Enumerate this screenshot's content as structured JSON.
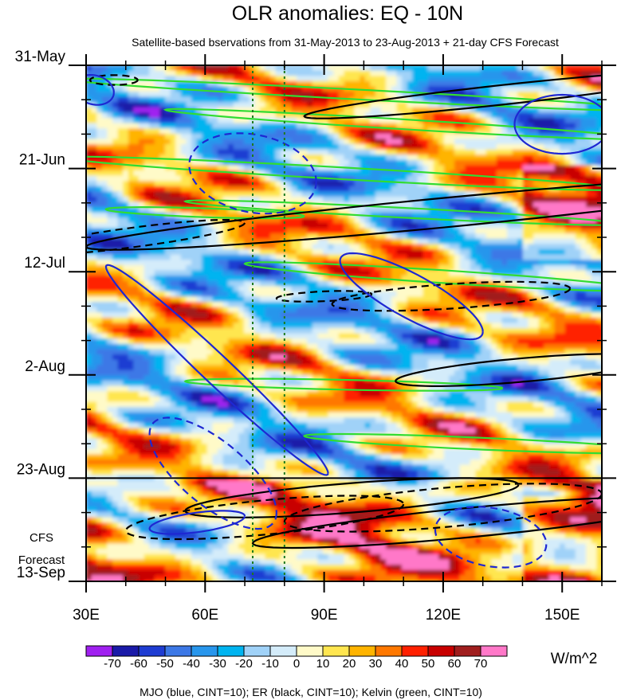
{
  "chart_data": {
    "type": "heatmap",
    "title": "OLR anomalies: EQ - 10N",
    "subtitle": "Satellite-based bservations from 31-May-2013 to 23-Aug-2013 + 21-day CFS Forecast",
    "x_axis": {
      "range": [
        30,
        160
      ],
      "ticks": [
        {
          "value": 30,
          "label": "30E"
        },
        {
          "value": 60,
          "label": "60E"
        },
        {
          "value": 90,
          "label": "90E"
        },
        {
          "value": 120,
          "label": "120E"
        },
        {
          "value": 150,
          "label": "150E"
        }
      ],
      "minor_step": 10
    },
    "y_axis": {
      "range_days": [
        0,
        105
      ],
      "ticks": [
        {
          "day": 0,
          "label": "31-May"
        },
        {
          "day": 21,
          "label": "21-Jun"
        },
        {
          "day": 42,
          "label": "12-Jul"
        },
        {
          "day": 63,
          "label": "2-Aug"
        },
        {
          "day": 84,
          "label": "23-Aug"
        },
        {
          "day": 105,
          "label": "13-Sep"
        }
      ],
      "minor_step_days": 7
    },
    "forecast_start_day": 84,
    "forecast_label": [
      "CFS",
      "Forecast"
    ],
    "reference_lons": [
      72,
      80
    ],
    "colorbar": {
      "unit": "W/m^2",
      "levels": [
        -70,
        -60,
        -50,
        -40,
        -30,
        -20,
        -10,
        0,
        10,
        20,
        30,
        40,
        50,
        60,
        70
      ],
      "level_labels": [
        "-70",
        "-60",
        "-50",
        "-40",
        "-30",
        "-20",
        "-10",
        "0",
        "10",
        "20",
        "30",
        "40",
        "50",
        "60",
        "70"
      ],
      "colors": [
        "#a020f0",
        "#1a1aa8",
        "#1e3cd2",
        "#3c78e6",
        "#2896ec",
        "#00b4f0",
        "#a0d2f8",
        "#d4ecfa",
        "#fffac8",
        "#ffe650",
        "#ffb400",
        "#ff7800",
        "#ff2000",
        "#c80000",
        "#a01e1e",
        "#ff78c8"
      ]
    },
    "series": [
      {
        "name": "MJO",
        "color": "#1e28d2",
        "cint": 10
      },
      {
        "name": "ER",
        "color": "#000000",
        "cint": 10
      },
      {
        "name": "Kelvin",
        "color": "#32dc32",
        "cint": 10
      }
    ],
    "footer": "MJO (blue, CINT=10); ER (black, CINT=10); Kelvin (green, CINT=10)"
  }
}
